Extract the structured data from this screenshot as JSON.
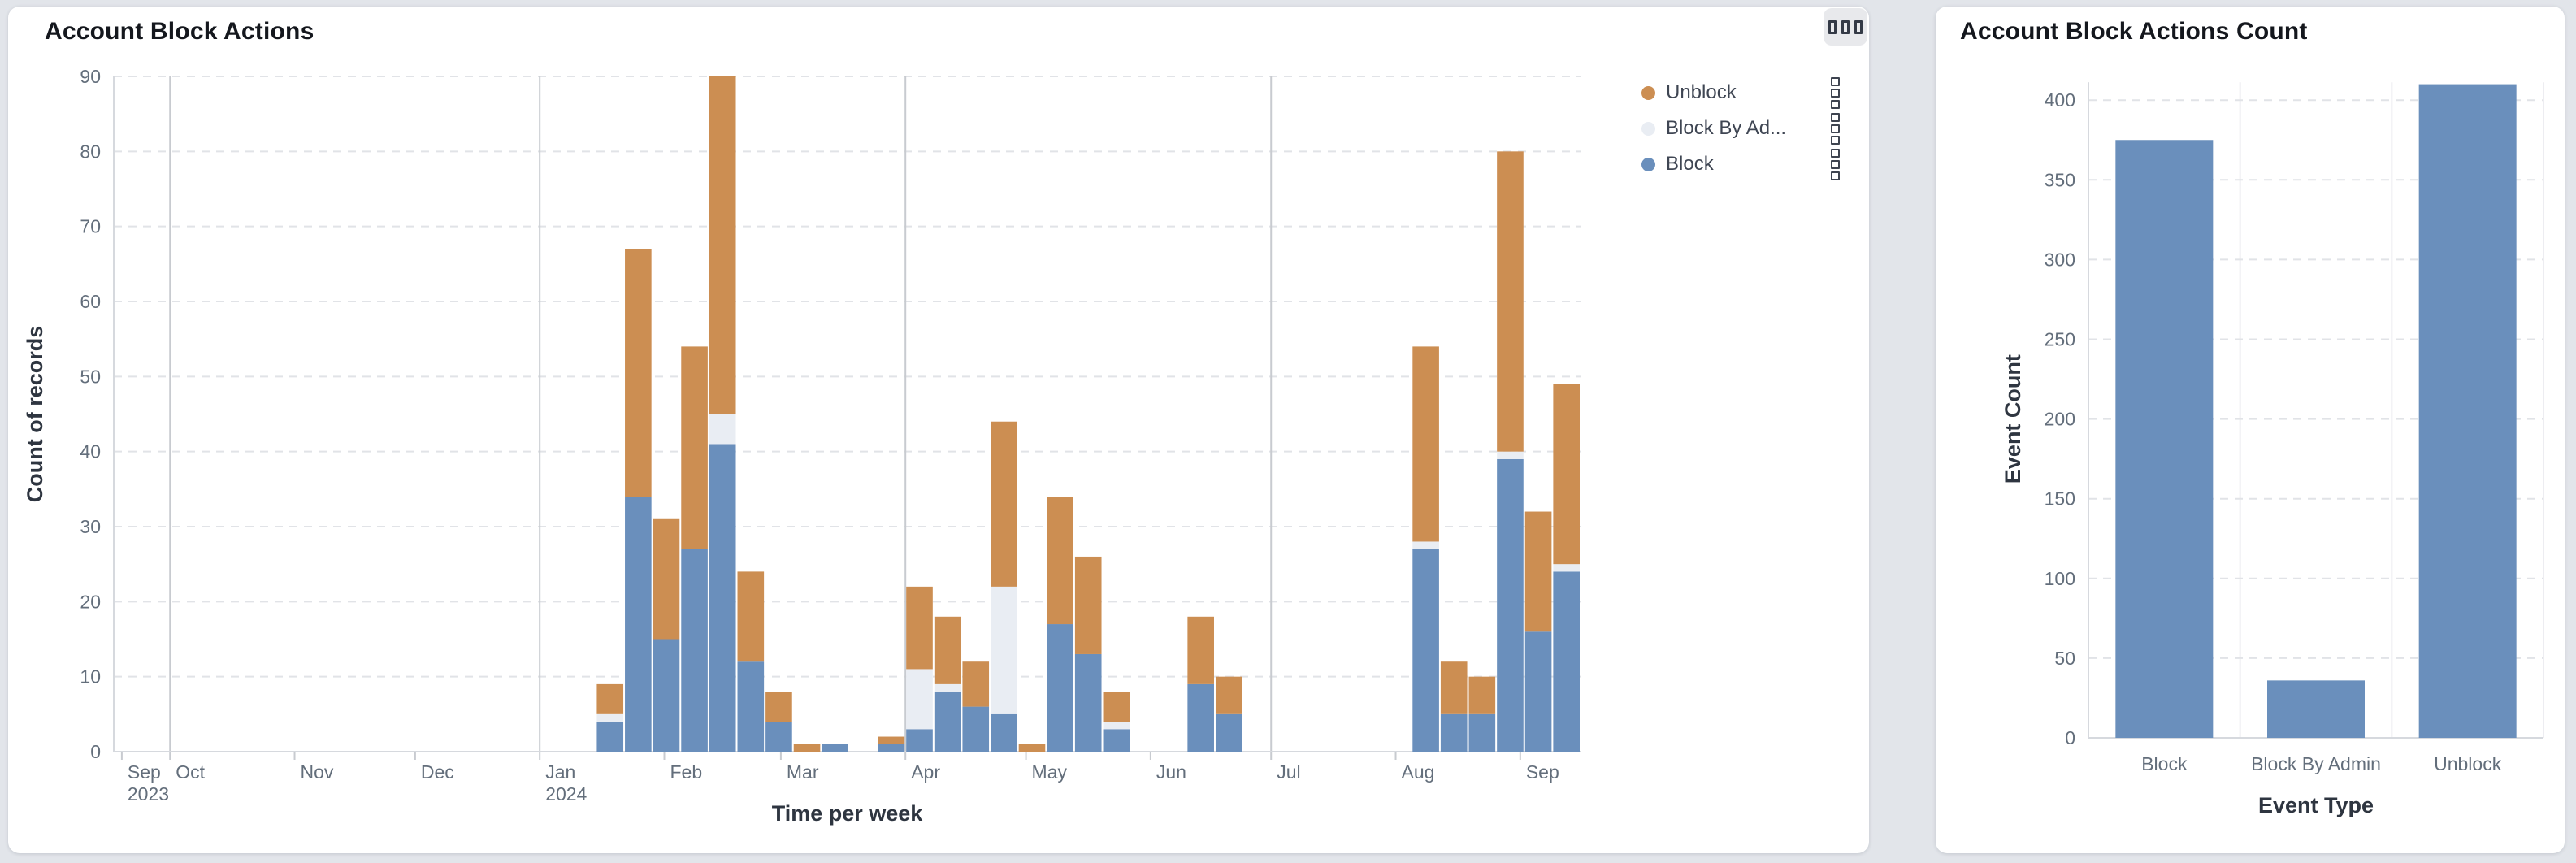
{
  "page": {
    "background": "#e2e5ea"
  },
  "left_card": {
    "title": "Account Block Actions",
    "options_button_icon": "three-squares-menu-icon",
    "legend": [
      {
        "label": "Unblock",
        "color": "#cc8e52"
      },
      {
        "label": "Block By Ad...",
        "color": "#e9edf3"
      },
      {
        "label": "Block",
        "color": "#6a8fbc"
      }
    ]
  },
  "right_card": {
    "title": "Account Block Actions Count"
  },
  "chart_data": [
    {
      "type": "bar",
      "stacked": true,
      "title": "Account Block Actions",
      "xlabel": "Time per week",
      "ylabel": "Count of records",
      "ylim": [
        0,
        90
      ],
      "yticks": [
        0,
        10,
        20,
        30,
        40,
        50,
        60,
        70,
        80,
        90
      ],
      "grid": "horizontal-dashed",
      "legend_position": "top-right",
      "x_time_domain": [
        "2023-09-17",
        "2024-09-16"
      ],
      "stack_order": [
        "block",
        "block_by_admin",
        "unblock"
      ],
      "series_colors": {
        "block": "#6a8fbc",
        "block_by_admin": "#e9edf3",
        "unblock": "#cc8e52"
      },
      "series_labels": {
        "block": "Block",
        "block_by_admin": "Block By Admin",
        "unblock": "Unblock"
      },
      "month_ticks": [
        {
          "date": "2023-09-19",
          "label": "Sep",
          "sublabel": "2023",
          "quarter_line": false
        },
        {
          "date": "2023-10-01",
          "label": "Oct",
          "quarter_line": true
        },
        {
          "date": "2023-11-01",
          "label": "Nov",
          "quarter_line": false
        },
        {
          "date": "2023-12-01",
          "label": "Dec",
          "quarter_line": false
        },
        {
          "date": "2024-01-01",
          "label": "Jan",
          "sublabel": "2024",
          "quarter_line": true
        },
        {
          "date": "2024-02-01",
          "label": "Feb",
          "quarter_line": false
        },
        {
          "date": "2024-03-01",
          "label": "Mar",
          "quarter_line": false
        },
        {
          "date": "2024-04-01",
          "label": "Apr",
          "quarter_line": true
        },
        {
          "date": "2024-05-01",
          "label": "May",
          "quarter_line": false
        },
        {
          "date": "2024-06-01",
          "label": "Jun",
          "quarter_line": false
        },
        {
          "date": "2024-07-01",
          "label": "Jul",
          "quarter_line": true
        },
        {
          "date": "2024-08-01",
          "label": "Aug",
          "quarter_line": false
        },
        {
          "date": "2024-09-01",
          "label": "Sep",
          "quarter_line": false
        }
      ],
      "weeks": [
        {
          "week": "2024-01-15",
          "block": 4,
          "block_by_admin": 1,
          "unblock": 4
        },
        {
          "week": "2024-01-22",
          "block": 34,
          "block_by_admin": 0,
          "unblock": 33
        },
        {
          "week": "2024-01-29",
          "block": 15,
          "block_by_admin": 0,
          "unblock": 16
        },
        {
          "week": "2024-02-05",
          "block": 27,
          "block_by_admin": 0,
          "unblock": 27
        },
        {
          "week": "2024-02-12",
          "block": 41,
          "block_by_admin": 4,
          "unblock": 45
        },
        {
          "week": "2024-02-19",
          "block": 12,
          "block_by_admin": 0,
          "unblock": 12
        },
        {
          "week": "2024-02-26",
          "block": 4,
          "block_by_admin": 0,
          "unblock": 4
        },
        {
          "week": "2024-03-04",
          "block": 0,
          "block_by_admin": 0,
          "unblock": 1
        },
        {
          "week": "2024-03-11",
          "block": 1,
          "block_by_admin": 0,
          "unblock": 0
        },
        {
          "week": "2024-03-25",
          "block": 1,
          "block_by_admin": 0,
          "unblock": 1
        },
        {
          "week": "2024-04-01",
          "block": 3,
          "block_by_admin": 8,
          "unblock": 11
        },
        {
          "week": "2024-04-08",
          "block": 8,
          "block_by_admin": 1,
          "unblock": 9
        },
        {
          "week": "2024-04-15",
          "block": 6,
          "block_by_admin": 0,
          "unblock": 6
        },
        {
          "week": "2024-04-22",
          "block": 5,
          "block_by_admin": 17,
          "unblock": 22
        },
        {
          "week": "2024-04-29",
          "block": 0,
          "block_by_admin": 0,
          "unblock": 1
        },
        {
          "week": "2024-05-06",
          "block": 17,
          "block_by_admin": 0,
          "unblock": 17
        },
        {
          "week": "2024-05-13",
          "block": 13,
          "block_by_admin": 0,
          "unblock": 13
        },
        {
          "week": "2024-05-20",
          "block": 3,
          "block_by_admin": 1,
          "unblock": 4
        },
        {
          "week": "2024-06-10",
          "block": 9,
          "block_by_admin": 0,
          "unblock": 9
        },
        {
          "week": "2024-06-17",
          "block": 5,
          "block_by_admin": 0,
          "unblock": 5
        },
        {
          "week": "2024-08-05",
          "block": 27,
          "block_by_admin": 1,
          "unblock": 26
        },
        {
          "week": "2024-08-12",
          "block": 5,
          "block_by_admin": 0,
          "unblock": 7
        },
        {
          "week": "2024-08-19",
          "block": 5,
          "block_by_admin": 0,
          "unblock": 5
        },
        {
          "week": "2024-08-26",
          "block": 39,
          "block_by_admin": 1,
          "unblock": 40
        },
        {
          "week": "2024-09-02",
          "block": 16,
          "block_by_admin": 0,
          "unblock": 16
        },
        {
          "week": "2024-09-09",
          "block": 24,
          "block_by_admin": 1,
          "unblock": 24
        }
      ]
    },
    {
      "type": "bar",
      "title": "Account Block Actions Count",
      "xlabel": "Event Type",
      "ylabel": "Event Count",
      "categories": [
        "Block",
        "Block By Admin",
        "Unblock"
      ],
      "values": [
        375,
        36,
        410
      ],
      "ylim": [
        0,
        400
      ],
      "yticks": [
        0,
        50,
        100,
        150,
        200,
        250,
        300,
        350,
        400
      ],
      "grid": "horizontal-dashed",
      "bar_color": "#6a8fbc"
    }
  ]
}
